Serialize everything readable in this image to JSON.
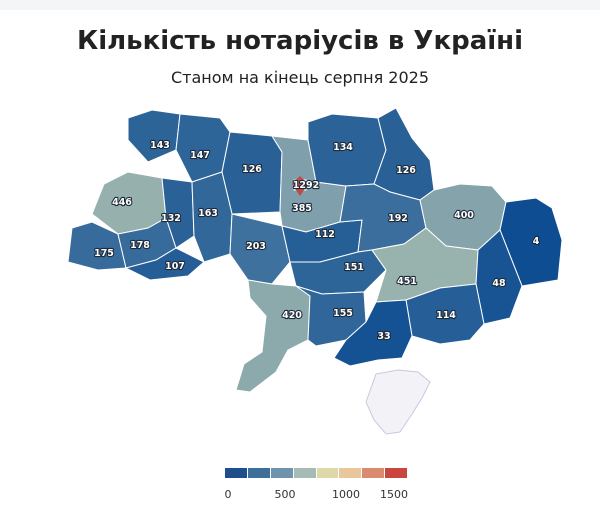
{
  "title": "Кількість нотаріусів в Україні",
  "subtitle": "Станом на кінець серпня 2025",
  "regions": [
    {
      "id": "volyn",
      "value": 143
    },
    {
      "id": "rivne",
      "value": 147
    },
    {
      "id": "zhytomyr",
      "value": 126
    },
    {
      "id": "kyiv-city",
      "value": 1292
    },
    {
      "id": "kyiv-oblast",
      "value": 385
    },
    {
      "id": "chernihiv",
      "value": 134
    },
    {
      "id": "sumy",
      "value": 126
    },
    {
      "id": "lviv",
      "value": 446
    },
    {
      "id": "ternopil",
      "value": 132
    },
    {
      "id": "khmelnytskyi",
      "value": 163
    },
    {
      "id": "zakarpattia",
      "value": 175
    },
    {
      "id": "ivano-frankivsk",
      "value": 178
    },
    {
      "id": "chernivtsi",
      "value": 107
    },
    {
      "id": "vinnytsia",
      "value": 203
    },
    {
      "id": "cherkasy",
      "value": 112
    },
    {
      "id": "poltava",
      "value": 192
    },
    {
      "id": "kharkiv",
      "value": 400
    },
    {
      "id": "luhansk",
      "value": 4
    },
    {
      "id": "kirovohrad",
      "value": 151
    },
    {
      "id": "dnipropetrovsk",
      "value": 451
    },
    {
      "id": "donetsk",
      "value": 48
    },
    {
      "id": "odesa",
      "value": 420
    },
    {
      "id": "mykolaiv",
      "value": 155
    },
    {
      "id": "zaporizhzhia",
      "value": 114
    },
    {
      "id": "kherson",
      "value": 33
    },
    {
      "id": "crimea",
      "value": null
    }
  ],
  "legend": {
    "ticks": [
      "0",
      "500",
      "1000",
      "1500"
    ],
    "colors": [
      "#1f4e8c",
      "#3e6e9a",
      "#6f93ad",
      "#a4bcb5",
      "#dcd9a6",
      "#e9c79a",
      "#d98b6f",
      "#c9463f"
    ]
  },
  "colors": {
    "no_data": "#f2f2f7",
    "marker": "#c04a44"
  }
}
